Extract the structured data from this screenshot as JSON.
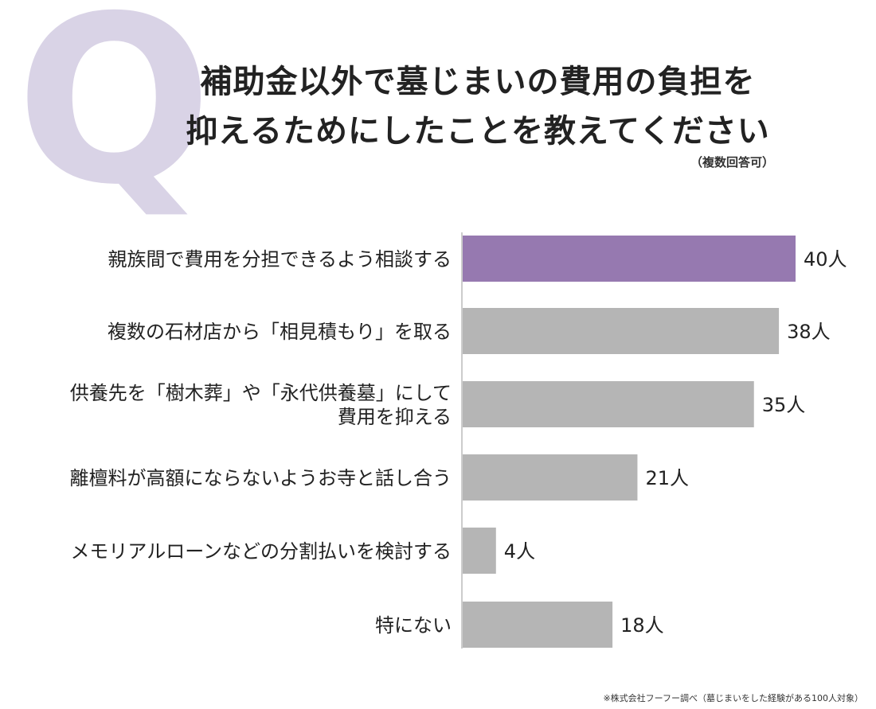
{
  "q_mark": "Q",
  "title": {
    "line1": "補助金以外で墓じまいの費用の負担を",
    "line2": "抑えるためにしたことを教えてください"
  },
  "note": "（複数回答可）",
  "source": "※株式会社フーフー調べ（墓じまいをした経験がある100人対象）",
  "colors": {
    "highlight": "#9679b0",
    "bar": "#b5b5b5",
    "axis": "#999999",
    "q_mark": "#d9d3e6"
  },
  "chart_data": {
    "type": "bar",
    "orientation": "horizontal",
    "categories": [
      [
        "親族間で費用を分担できるよう相談する"
      ],
      [
        "複数の石材店から「相見積もり」を取る"
      ],
      [
        "供養先を「樹木葬」や「永代供養墓」にして",
        "費用を抑える"
      ],
      [
        "離檀料が高額にならないようお寺と話し合う"
      ],
      [
        "メモリアルローンなどの分割払いを検討する"
      ],
      [
        "特にない"
      ]
    ],
    "values": [
      40,
      38,
      35,
      21,
      4,
      18
    ],
    "value_labels": [
      "40人",
      "38人",
      "35人",
      "21人",
      "4人",
      "18人"
    ],
    "highlight_index": 0,
    "xlim": [
      0,
      40
    ],
    "grid": false
  }
}
